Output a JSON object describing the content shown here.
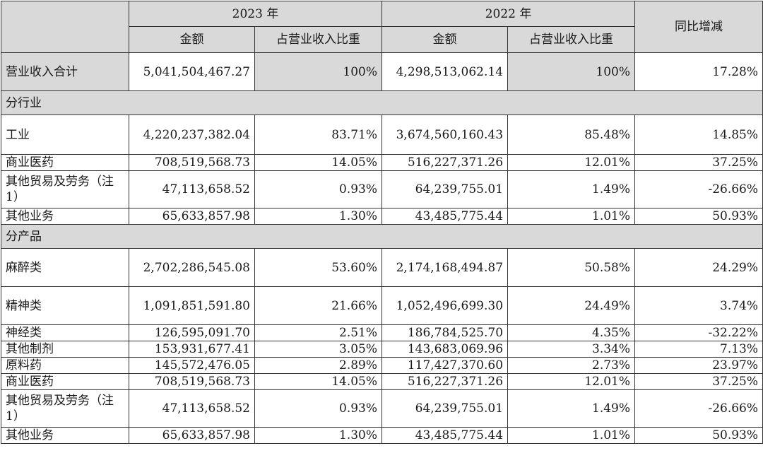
{
  "header": {
    "year_2023": "2023 年",
    "year_2022": "2022 年",
    "amount": "金额",
    "share": "占营业收入比重",
    "yoy": "同比增减"
  },
  "total": {
    "label": "营业收入合计",
    "amt_2023": "5,041,504,467.27",
    "share_2023": "100%",
    "amt_2022": "4,298,513,062.14",
    "share_2022": "100%",
    "yoy": "17.28%"
  },
  "sections": [
    {
      "title": "分行业",
      "rows": [
        {
          "label": "工业",
          "amt_2023": "4,220,237,382.04",
          "share_2023": "83.71%",
          "amt_2022": "3,674,560,160.43",
          "share_2022": "85.48%",
          "yoy": "14.85%"
        },
        {
          "label": "商业医药",
          "amt_2023": "708,519,568.73",
          "share_2023": "14.05%",
          "amt_2022": "516,227,371.26",
          "share_2022": "12.01%",
          "yoy": "37.25%"
        },
        {
          "label": "其他贸易及劳务（注1）",
          "amt_2023": "47,113,658.52",
          "share_2023": "0.93%",
          "amt_2022": "64,239,755.01",
          "share_2022": "1.49%",
          "yoy": "-26.66%"
        },
        {
          "label": "其他业务",
          "amt_2023": "65,633,857.98",
          "share_2023": "1.30%",
          "amt_2022": "43,485,775.44",
          "share_2022": "1.01%",
          "yoy": "50.93%"
        }
      ]
    },
    {
      "title": "分产品",
      "rows": [
        {
          "label": "麻醉类",
          "amt_2023": "2,702,286,545.08",
          "share_2023": "53.60%",
          "amt_2022": "2,174,168,494.87",
          "share_2022": "50.58%",
          "yoy": "24.29%"
        },
        {
          "label": "精神类",
          "amt_2023": "1,091,851,591.80",
          "share_2023": "21.66%",
          "amt_2022": "1,052,496,699.30",
          "share_2022": "24.49%",
          "yoy": "3.74%"
        },
        {
          "label": "神经类",
          "amt_2023": "126,595,091.70",
          "share_2023": "2.51%",
          "amt_2022": "186,784,525.70",
          "share_2022": "4.35%",
          "yoy": "-32.22%"
        },
        {
          "label": "其他制剂",
          "amt_2023": "153,931,677.41",
          "share_2023": "3.05%",
          "amt_2022": "143,683,069.96",
          "share_2022": "3.34%",
          "yoy": "7.13%"
        },
        {
          "label": "原料药",
          "amt_2023": "145,572,476.05",
          "share_2023": "2.89%",
          "amt_2022": "117,427,370.60",
          "share_2022": "2.73%",
          "yoy": "23.97%"
        },
        {
          "label": "商业医药",
          "amt_2023": "708,519,568.73",
          "share_2023": "14.05%",
          "amt_2022": "516,227,371.26",
          "share_2022": "12.01%",
          "yoy": "37.25%"
        },
        {
          "label": "其他贸易及劳务（注1）",
          "amt_2023": "47,113,658.52",
          "share_2023": "0.93%",
          "amt_2022": "64,239,755.01",
          "share_2022": "1.49%",
          "yoy": "-26.66%"
        },
        {
          "label": "其他业务",
          "amt_2023": "65,633,857.98",
          "share_2023": "1.30%",
          "amt_2022": "43,485,775.44",
          "share_2022": "1.01%",
          "yoy": "50.93%"
        }
      ]
    }
  ]
}
